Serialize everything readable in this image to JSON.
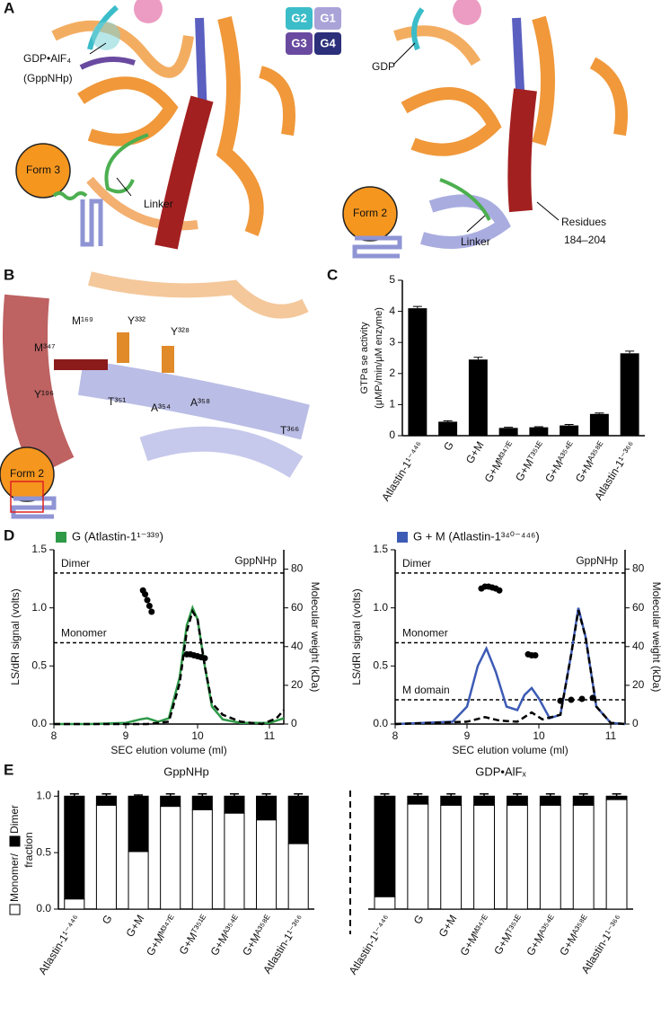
{
  "panel_letters": [
    "A",
    "B",
    "C",
    "D",
    "E"
  ],
  "panel_a": {
    "labels": [
      "GDP•AlF₄",
      "(GppNHp)",
      "Form 3",
      "Linker",
      "GDP",
      "Form 2",
      "Linker",
      "Residues",
      "184–204"
    ],
    "motifs": [
      "G2",
      "G1",
      "G3",
      "G4"
    ]
  },
  "panel_b": {
    "labels": [
      "M¹⁶⁹",
      "Y³³²",
      "Y³²⁸",
      "M³⁴⁷",
      "Y¹⁹⁶",
      "T³⁵¹",
      "A³⁵⁴",
      "A³⁵⁸",
      "T³⁶⁶",
      "Form 2"
    ]
  },
  "chart_data": [
    {
      "type": "bar",
      "ylabel": [
        "GTPa se activity",
        "(μMPᵢ/min/μM enzyme)"
      ],
      "categories": [
        "Atlastin-1¹⁻⁴⁴⁶",
        "G",
        "G+M",
        "G+Mᴹ³⁴⁷ᴱ",
        "G+Mᵀ³⁵¹ᴱ",
        "G+Mᴬ³⁵⁴ᴱ",
        "G+Mᴬ³⁵⁸ᴱ",
        "Atlastin-1¹⁻³⁶⁶"
      ],
      "values": [
        4.1,
        0.45,
        2.45,
        0.25,
        0.27,
        0.33,
        0.7,
        2.65
      ],
      "errors": [
        0.06,
        0.03,
        0.07,
        0.02,
        0.02,
        0.03,
        0.03,
        0.07
      ],
      "color": "#000000",
      "ylim": [
        0,
        5
      ],
      "yticks": [
        0,
        1,
        2,
        3,
        4,
        5
      ]
    },
    {
      "type": "line",
      "annotation": "GppNHp",
      "xlabel": "SEC elution volume (ml)",
      "ylabel": "LS/dRI signal (volts)",
      "y2label": "Molecular weight (kDa)",
      "xlim": [
        8,
        11.2
      ],
      "xticks": [
        8,
        9,
        10,
        11
      ],
      "ylim": [
        0,
        1.5
      ],
      "yticks": [
        {
          "value": 0,
          "label": "0.0"
        },
        0.5,
        {
          "value": 1,
          "label": "1.0"
        },
        1.5
      ],
      "y2lim": [
        0,
        90
      ],
      "y2ticks": [
        0,
        20,
        40,
        60,
        80
      ],
      "reference_lines": [
        {
          "label": "Dimer",
          "value": 78
        },
        {
          "label": "Monomer",
          "value": 42
        }
      ],
      "series": [
        {
          "name": "G (Atlastin-1¹⁻³³⁹)",
          "color": "#2e9a48",
          "style": "solid",
          "x": [
            8,
            8.5,
            9.0,
            9.2,
            9.3,
            9.45,
            9.6,
            9.75,
            9.85,
            9.93,
            10.0,
            10.1,
            10.2,
            10.35,
            10.6,
            11.0,
            11.2
          ],
          "values": [
            0.0,
            0.0,
            0.01,
            0.04,
            0.05,
            0.02,
            0.05,
            0.4,
            0.85,
            1.0,
            0.9,
            0.5,
            0.15,
            0.04,
            0.01,
            0.01,
            0.05
          ]
        },
        {
          "color": "#000000",
          "style": "dashed",
          "x": [
            8,
            9.0,
            9.3,
            9.6,
            9.75,
            9.85,
            9.93,
            10.0,
            10.1,
            10.2,
            10.35,
            10.6,
            10.9,
            11.1,
            11.2
          ],
          "values": [
            0.0,
            0.0,
            0.0,
            0.02,
            0.35,
            0.8,
            0.97,
            0.9,
            0.5,
            0.18,
            0.08,
            0.02,
            0.0,
            0.05,
            0.12
          ]
        },
        {
          "color": "#000000",
          "style": "points",
          "axis": "y2",
          "x": [
            9.24,
            9.27,
            9.3,
            9.33,
            9.36,
            9.85,
            9.9,
            9.95,
            10.0,
            10.05,
            10.1
          ],
          "values": [
            69,
            67,
            64,
            61,
            58,
            36,
            36,
            35.5,
            35,
            34.5,
            34
          ]
        }
      ]
    },
    {
      "type": "line",
      "annotation": "GppNHp",
      "xlabel": "SEC elution volume (ml)",
      "ylabel": "LS/dRI signal (volts)",
      "y2label": "Molecular weight (kDa)",
      "xlim": [
        8,
        11.2
      ],
      "xticks": [
        8,
        9,
        10,
        11
      ],
      "ylim": [
        0,
        1.5
      ],
      "yticks": [
        {
          "value": 0,
          "label": "0.0"
        },
        0.5,
        {
          "value": 1,
          "label": "1.0"
        },
        1.5
      ],
      "y2lim": [
        0,
        90
      ],
      "y2ticks": [
        0,
        20,
        40,
        60,
        80
      ],
      "reference_lines": [
        {
          "label": "Dimer",
          "value": 78
        },
        {
          "label": "Monomer",
          "value": 42
        },
        {
          "label": "M domain",
          "value": 12.5
        }
      ],
      "series": [
        {
          "name": "G + M (Atlastin-1³⁴⁰⁻⁴⁴⁶)",
          "color": "#3d5bb5",
          "style": "solid",
          "x": [
            8,
            8.8,
            9.0,
            9.15,
            9.27,
            9.4,
            9.55,
            9.7,
            9.8,
            9.9,
            10.0,
            10.15,
            10.3,
            10.45,
            10.55,
            10.65,
            10.8,
            11.0,
            11.2
          ],
          "values": [
            0.0,
            0.02,
            0.15,
            0.5,
            0.65,
            0.45,
            0.15,
            0.12,
            0.25,
            0.31,
            0.22,
            0.05,
            0.08,
            0.6,
            1.0,
            0.75,
            0.15,
            0.01,
            0.0
          ]
        },
        {
          "color": "#000000",
          "style": "dashed",
          "x": [
            8,
            9.0,
            9.25,
            9.45,
            9.7,
            9.9,
            10.05,
            10.3,
            10.45,
            10.55,
            10.65,
            10.8,
            11.0,
            11.2
          ],
          "values": [
            0.0,
            0.02,
            0.06,
            0.03,
            0.02,
            0.1,
            0.04,
            0.08,
            0.6,
            0.98,
            0.75,
            0.15,
            0.01,
            0.0
          ]
        },
        {
          "color": "#000000",
          "style": "points",
          "axis": "y2",
          "x": [
            9.2,
            9.25,
            9.3,
            9.35,
            9.4,
            9.45,
            9.85,
            9.9,
            9.95,
            10.3,
            10.45,
            10.6,
            10.75
          ],
          "values": [
            70,
            71,
            71,
            70.5,
            70,
            69,
            36,
            35.5,
            35.5,
            12,
            12.5,
            13,
            13.5
          ]
        }
      ]
    },
    {
      "type": "stacked_bar",
      "subtitle": "GppNHp",
      "ylabel": "fraction",
      "categories": [
        "Atlastin-1¹⁻⁴⁴⁶",
        "G",
        "G+M",
        "G+Mᴹ³⁴⁷ᴱ",
        "G+Mᵀ³⁵¹ᴱ",
        "G+Mᴬ³⁵⁴ᴱ",
        "G+Mᴬ³⁵⁸ᴱ",
        "Atlastin-1¹⁻³⁶⁶"
      ],
      "ylim": [
        0,
        1.05
      ],
      "yticks": [
        {
          "value": 0,
          "label": "0.0"
        },
        0.5,
        {
          "value": 1,
          "label": "1.0"
        }
      ],
      "series": [
        {
          "name": "Monomer/",
          "color": "#ffffff",
          "values": [
            0.09,
            0.92,
            0.51,
            0.91,
            0.88,
            0.85,
            0.79,
            0.58
          ],
          "errors": [
            0.01,
            0.04,
            0.01,
            0.05,
            0.06,
            0.06,
            0.07,
            0.02
          ]
        },
        {
          "name": "Dimer",
          "color": "#000000",
          "values": [
            0.91,
            0.08,
            0.49,
            0.09,
            0.12,
            0.15,
            0.21,
            0.42
          ],
          "errors": [
            0.02,
            0.02,
            0.01,
            0.02,
            0.02,
            0.02,
            0.02,
            0.02
          ]
        }
      ]
    },
    {
      "type": "stacked_bar",
      "subtitle": "GDP•AlFₓ",
      "categories": [
        "Atlastin-1¹⁻⁴⁴⁶",
        "G",
        "G+M",
        "G+Mᴹ³⁴⁷ᴱ",
        "G+Mᵀ³⁵¹ᴱ",
        "G+Mᴬ³⁵⁴ᴱ",
        "G+Mᴬ³⁵⁸ᴱ",
        "Atlastin-1¹⁻³⁶⁶"
      ],
      "ylim": [
        0,
        1.05
      ],
      "series": [
        {
          "color": "#ffffff",
          "values": [
            0.11,
            0.93,
            0.92,
            0.92,
            0.92,
            0.92,
            0.92,
            0.97
          ],
          "errors": [
            0.01,
            0.04,
            0.04,
            0.04,
            0.04,
            0.04,
            0.04,
            0.02
          ]
        },
        {
          "color": "#000000",
          "values": [
            0.89,
            0.07,
            0.08,
            0.08,
            0.08,
            0.08,
            0.08,
            0.03
          ],
          "errors": [
            0.02,
            0.02,
            0.02,
            0.02,
            0.02,
            0.02,
            0.02,
            0.02
          ]
        }
      ]
    }
  ]
}
